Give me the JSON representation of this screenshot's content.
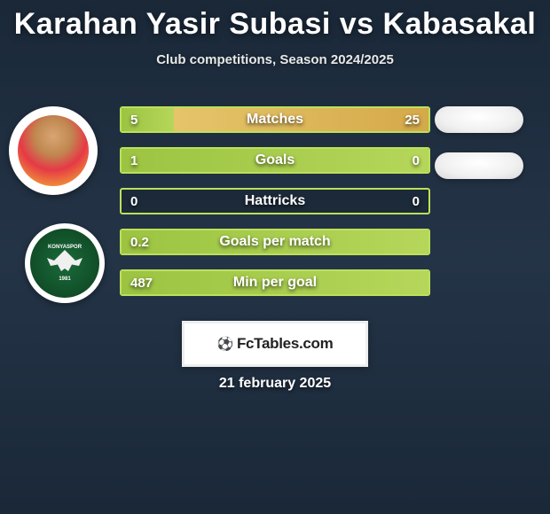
{
  "title": "Karahan Yasir Subasi vs Kabasakal",
  "subtitle": "Club competitions, Season 2024/2025",
  "date": "21 february 2025",
  "logo_text": "FcTables.com",
  "colors": {
    "bg_top": "#1a2838",
    "bg_mid": "#243447",
    "border": "#bde05a",
    "bar_left": "#9cc442",
    "bar_right": "#d4a94a",
    "text": "#ffffff"
  },
  "stats": [
    {
      "label": "Matches",
      "left_val": "5",
      "right_val": "25",
      "left_pct": 17,
      "right_pct": 83
    },
    {
      "label": "Goals",
      "left_val": "1",
      "right_val": "0",
      "left_pct": 100,
      "right_pct": 0
    },
    {
      "label": "Hattricks",
      "left_val": "0",
      "right_val": "0",
      "left_pct": 0,
      "right_pct": 0
    },
    {
      "label": "Goals per match",
      "left_val": "0.2",
      "right_val": "",
      "left_pct": 100,
      "right_pct": 0
    },
    {
      "label": "Min per goal",
      "left_val": "487",
      "right_val": "",
      "left_pct": 100,
      "right_pct": 0
    }
  ],
  "club_name": "KONYASPOR",
  "club_year": "1981"
}
